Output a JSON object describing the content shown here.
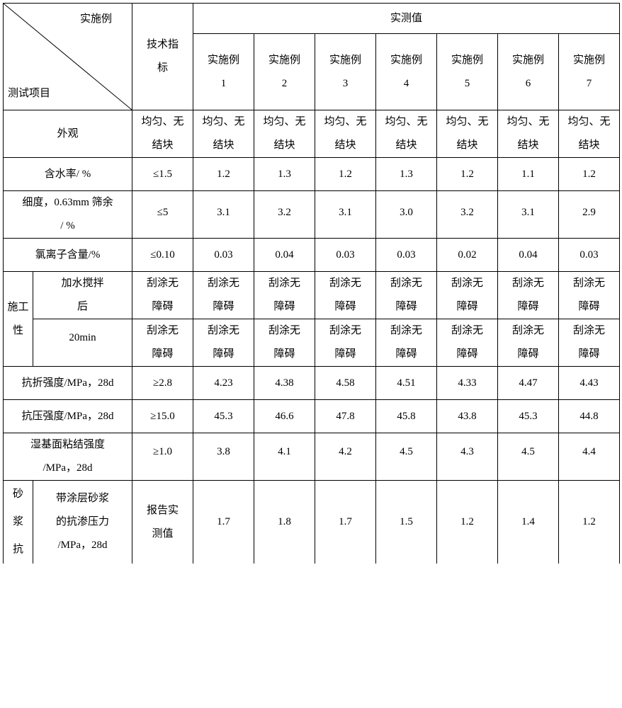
{
  "headers": {
    "diag_top": "实施例",
    "diag_bot": "测试项目",
    "spec": "技术指\n标",
    "measured": "实测值",
    "examples": [
      "实施例\n1",
      "实施例\n2",
      "实施例\n3",
      "实施例\n4",
      "实施例\n5",
      "实施例\n6",
      "实施例\n7"
    ]
  },
  "rows": {
    "appearance": {
      "label": "外观",
      "spec": "均匀、无\n结块",
      "vals": [
        "均匀、无\n结块",
        "均匀、无\n结块",
        "均匀、无\n结块",
        "均匀、无\n结块",
        "均匀、无\n结块",
        "均匀、无\n结块",
        "均匀、无\n结块"
      ]
    },
    "water": {
      "label": "含水率/ %",
      "spec": "≤1.5",
      "vals": [
        "1.2",
        "1.3",
        "1.2",
        "1.3",
        "1.2",
        "1.1",
        "1.2"
      ]
    },
    "fineness": {
      "label": "细度，0.63mm 筛余\n/ %",
      "spec": "≤5",
      "vals": [
        "3.1",
        "3.2",
        "3.1",
        "3.0",
        "3.2",
        "3.1",
        "2.9"
      ]
    },
    "chloride": {
      "label": "氯离子含量/%",
      "spec": "≤0.10",
      "vals": [
        "0.03",
        "0.04",
        "0.03",
        "0.03",
        "0.02",
        "0.04",
        "0.03"
      ]
    },
    "work": {
      "group": "施工\n性",
      "sub1": "加水搅拌\n后",
      "sub2": "20min",
      "spec1": "刮涂无\n障碍",
      "spec2": "刮涂无\n障碍",
      "vals1": [
        "刮涂无\n障碍",
        "刮涂无\n障碍",
        "刮涂无\n障碍",
        "刮涂无\n障碍",
        "刮涂无\n障碍",
        "刮涂无\n障碍",
        "刮涂无\n障碍"
      ],
      "vals2": [
        "刮涂无\n障碍",
        "刮涂无\n障碍",
        "刮涂无\n障碍",
        "刮涂无\n障碍",
        "刮涂无\n障碍",
        "刮涂无\n障碍",
        "刮涂无\n障碍"
      ]
    },
    "flex": {
      "label": "抗折强度/MPa，28d",
      "spec": "≥2.8",
      "vals": [
        "4.23",
        "4.38",
        "4.58",
        "4.51",
        "4.33",
        "4.47",
        "4.43"
      ]
    },
    "comp": {
      "label": "抗压强度/MPa，28d",
      "spec": "≥15.0",
      "vals": [
        "45.3",
        "46.6",
        "47.8",
        "45.8",
        "43.8",
        "45.3",
        "44.8"
      ]
    },
    "bond": {
      "label": "湿基面粘结强度\n/MPa，28d",
      "spec": "≥1.0",
      "vals": [
        "3.8",
        "4.1",
        "4.2",
        "4.5",
        "4.3",
        "4.5",
        "4.4"
      ]
    },
    "perm": {
      "group": "砂\n浆\n抗",
      "sub": "带涂层砂浆\n的抗渗压力\n/MPa，28d",
      "spec": "报告实\n测值",
      "vals": [
        "1.7",
        "1.8",
        "1.7",
        "1.5",
        "1.2",
        "1.4",
        "1.2"
      ]
    }
  },
  "style": {
    "font_size_pt": 11,
    "border_color": "#000000",
    "background": "#ffffff",
    "text_color": "#000000"
  }
}
